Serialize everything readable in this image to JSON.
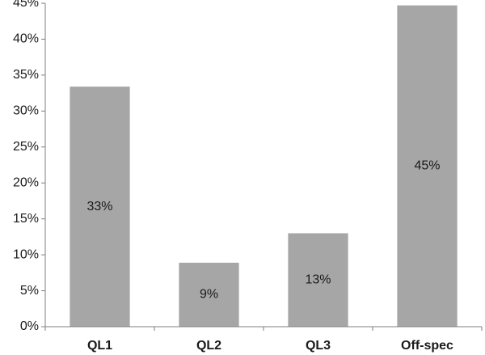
{
  "chart_data": {
    "type": "bar",
    "title": "",
    "xlabel": "",
    "ylabel": "",
    "categories": [
      "QL1",
      "QL2",
      "QL3",
      "Off-spec"
    ],
    "values": [
      33.4,
      8.9,
      13.0,
      44.7
    ],
    "data_labels": [
      "33%",
      "9%",
      "13%",
      "45%"
    ],
    "ylim": [
      0,
      45
    ],
    "yticks": [
      0,
      5,
      10,
      15,
      20,
      25,
      30,
      35,
      40,
      45
    ],
    "ytick_labels": [
      "0%",
      "5%",
      "10%",
      "15%",
      "20%",
      "25%",
      "30%",
      "35%",
      "40%",
      "45%"
    ],
    "grid": false,
    "legend": "none",
    "colors": {
      "bar": "#a6a6a6",
      "axis": "#7f7f7f",
      "text": "#1a1a1a"
    }
  }
}
